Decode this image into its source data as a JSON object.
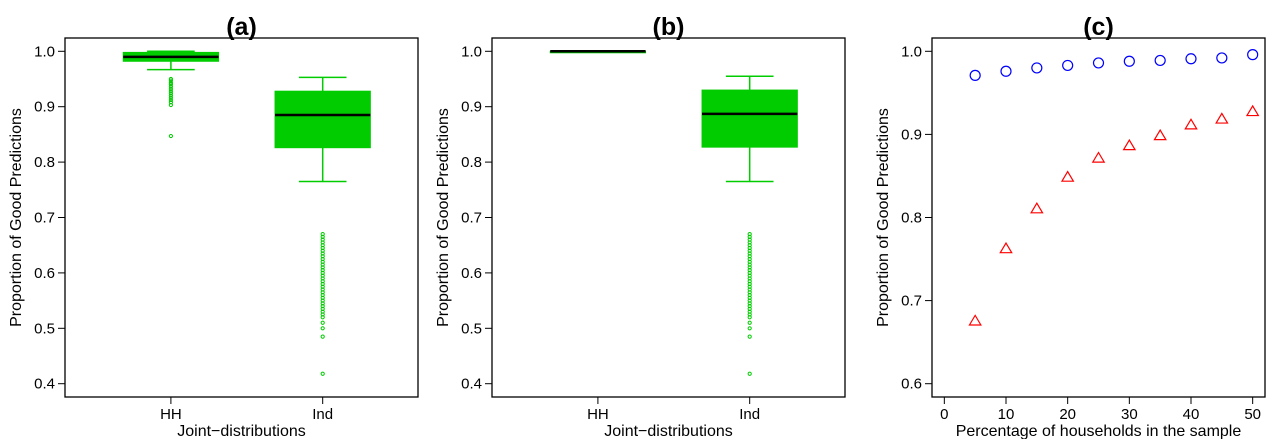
{
  "chart_data": [
    {
      "type": "box",
      "title": "(a)",
      "xlabel": "Joint−distributions",
      "ylabel": "Proportion of Good Predictions",
      "ylim": [
        0.4,
        1.0
      ],
      "yticks": [
        "0.4",
        "0.5",
        "0.6",
        "0.7",
        "0.8",
        "0.9",
        "1.0"
      ],
      "categories": [
        "HH",
        "Ind"
      ],
      "color": "#00cc00",
      "boxes": [
        {
          "category": "HH",
          "whisker_low": 0.967,
          "q1": 0.982,
          "median": 0.99,
          "q3": 0.998,
          "whisker_high": 1.0,
          "outliers": [
            0.95,
            0.947,
            0.943,
            0.94,
            0.936,
            0.932,
            0.928,
            0.924,
            0.92,
            0.916,
            0.912,
            0.908,
            0.903,
            0.847
          ]
        },
        {
          "category": "Ind",
          "whisker_low": 0.765,
          "q1": 0.826,
          "median": 0.885,
          "q3": 0.928,
          "whisker_high": 0.953,
          "outliers": [
            0.67,
            0.665,
            0.66,
            0.655,
            0.65,
            0.645,
            0.64,
            0.635,
            0.63,
            0.625,
            0.62,
            0.615,
            0.61,
            0.605,
            0.6,
            0.595,
            0.59,
            0.585,
            0.58,
            0.575,
            0.57,
            0.565,
            0.56,
            0.555,
            0.55,
            0.545,
            0.54,
            0.535,
            0.53,
            0.525,
            0.52,
            0.51,
            0.5,
            0.485,
            0.418
          ]
        }
      ]
    },
    {
      "type": "box",
      "title": "(b)",
      "xlabel": "Joint−distributions",
      "ylabel": "Proportion of Good Predictions",
      "ylim": [
        0.4,
        1.0
      ],
      "yticks": [
        "0.4",
        "0.5",
        "0.6",
        "0.7",
        "0.8",
        "0.9",
        "1.0"
      ],
      "categories": [
        "HH",
        "Ind"
      ],
      "color": "#00cc00",
      "boxes": [
        {
          "category": "HH",
          "whisker_low": 0.999,
          "q1": 0.999,
          "median": 1.0,
          "q3": 1.0,
          "whisker_high": 1.0,
          "outliers": []
        },
        {
          "category": "Ind",
          "whisker_low": 0.765,
          "q1": 0.827,
          "median": 0.887,
          "q3": 0.93,
          "whisker_high": 0.955,
          "outliers": [
            0.67,
            0.665,
            0.66,
            0.655,
            0.65,
            0.645,
            0.64,
            0.635,
            0.63,
            0.625,
            0.62,
            0.615,
            0.61,
            0.605,
            0.6,
            0.595,
            0.59,
            0.585,
            0.58,
            0.575,
            0.57,
            0.565,
            0.56,
            0.555,
            0.55,
            0.545,
            0.54,
            0.535,
            0.53,
            0.525,
            0.52,
            0.51,
            0.5,
            0.485,
            0.418
          ]
        }
      ]
    },
    {
      "type": "scatter",
      "title": "(c)",
      "xlabel": "Percentage of households in the sample",
      "ylabel": "Proportion of Good Predictions",
      "xlim": [
        0,
        50
      ],
      "ylim": [
        0.6,
        1.0
      ],
      "xticks": [
        "0",
        "10",
        "20",
        "30",
        "40",
        "50"
      ],
      "yticks": [
        "0.6",
        "0.7",
        "0.8",
        "0.9",
        "1.0"
      ],
      "series": [
        {
          "marker": "circle",
          "color": "#0000ff",
          "x": [
            5,
            10,
            15,
            20,
            25,
            30,
            35,
            40,
            45,
            50
          ],
          "y": [
            0.971,
            0.976,
            0.98,
            0.983,
            0.986,
            0.988,
            0.989,
            0.991,
            0.992,
            0.996
          ]
        },
        {
          "marker": "triangle",
          "color": "#ff0000",
          "x": [
            5,
            10,
            15,
            20,
            25,
            30,
            35,
            40,
            45,
            50
          ],
          "y": [
            0.675,
            0.762,
            0.81,
            0.848,
            0.871,
            0.886,
            0.898,
            0.911,
            0.918,
            0.927
          ]
        }
      ]
    }
  ]
}
